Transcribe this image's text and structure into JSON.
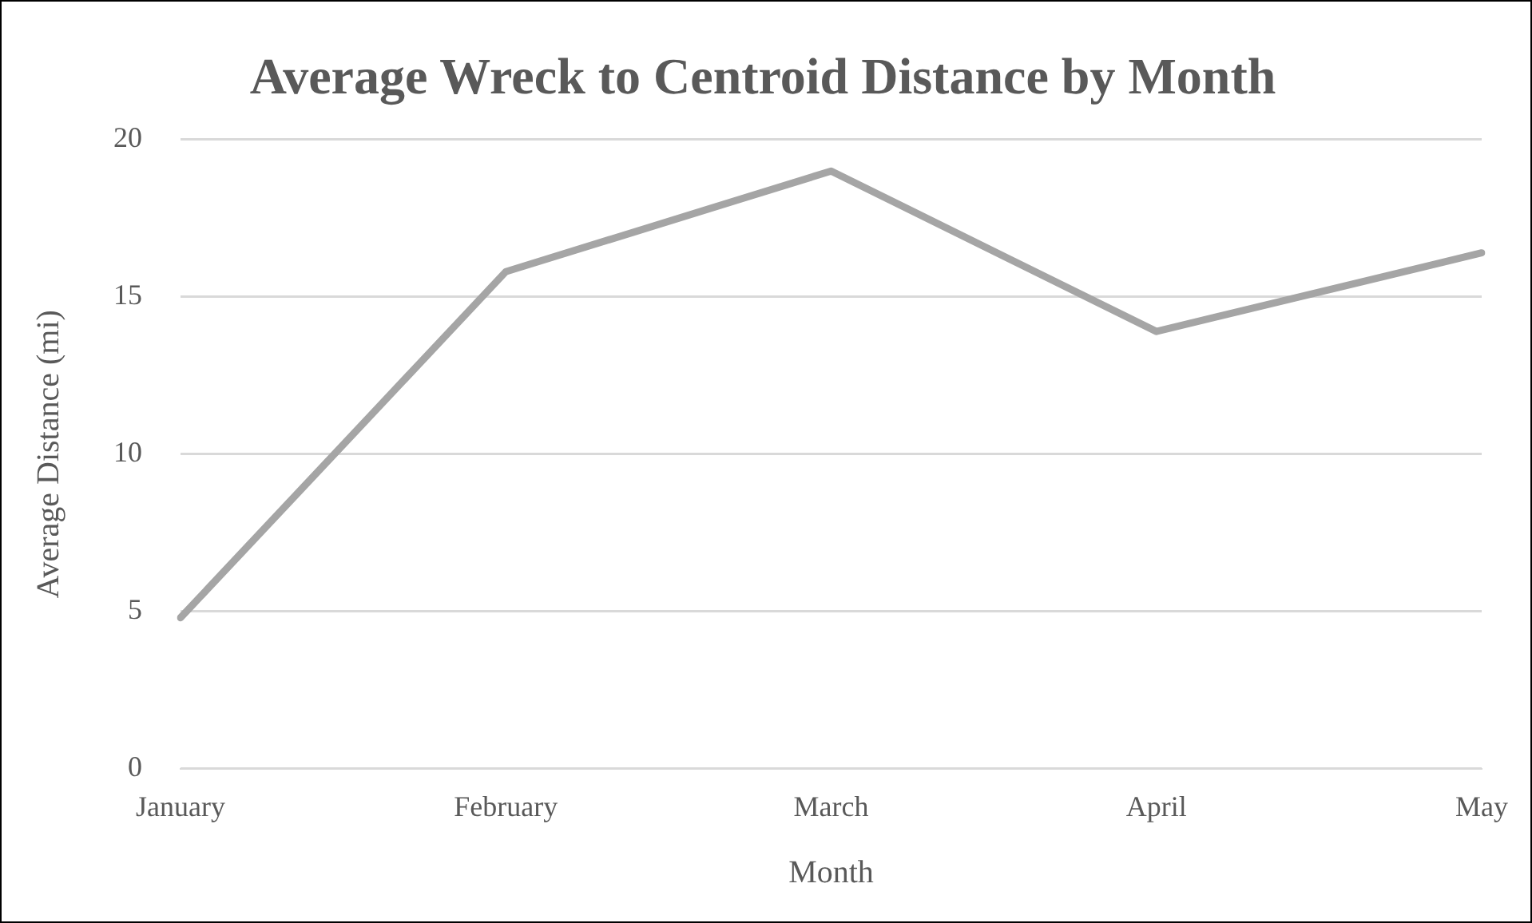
{
  "chart_data": {
    "type": "line",
    "title": "Average Wreck to Centroid Distance by Month",
    "xlabel": "Month",
    "ylabel": "Average Distance (mi)",
    "categories": [
      "January",
      "February",
      "March",
      "April",
      "May"
    ],
    "series": [
      {
        "color": "#a5a5a5",
        "values": [
          4.8,
          15.8,
          19.0,
          13.9,
          16.4
        ]
      }
    ],
    "ylim": [
      0,
      20
    ],
    "yticks": [
      0,
      5,
      10,
      15,
      20
    ],
    "grid": "y",
    "legend": false,
    "marker": "none",
    "line_style": "solid"
  }
}
